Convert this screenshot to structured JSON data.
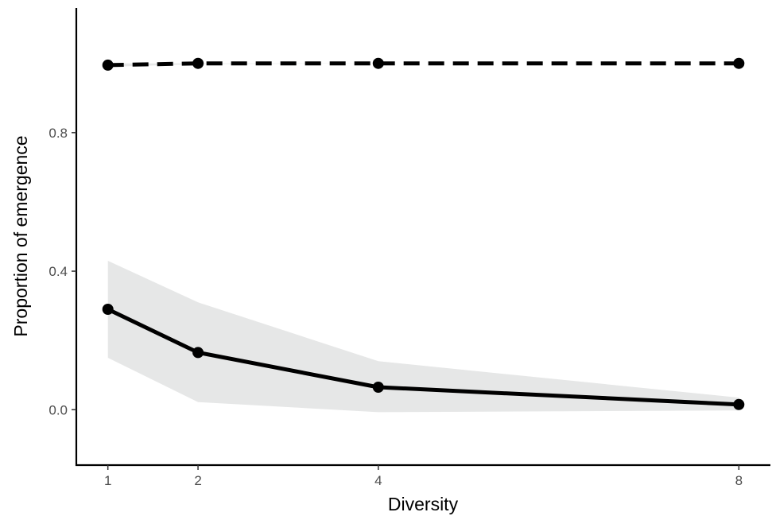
{
  "chart_data": {
    "type": "line",
    "title": "",
    "xlabel": "Diversity",
    "ylabel": "Proportion of emergence",
    "x": [
      1,
      2,
      4,
      8
    ],
    "x_ticks": [
      "1",
      "2",
      "4",
      "8"
    ],
    "y_ticks": [
      "0.0",
      "0.4",
      "0.8"
    ],
    "y_tick_values": [
      0.0,
      0.4,
      0.8
    ],
    "xlim": [
      0.65,
      8.35
    ],
    "ylim": [
      -0.16,
      1.16
    ],
    "grid": false,
    "legend": "none",
    "series": [
      {
        "line_style": "dashed",
        "color": "#000000",
        "values": [
          0.995,
          1.0,
          1.0,
          1.0
        ],
        "ci_lower": [
          0.99,
          0.998,
          1.0,
          1.0
        ],
        "ci_upper": [
          1.0,
          1.0,
          1.0,
          1.0
        ]
      },
      {
        "line_style": "solid",
        "color": "#000000",
        "values": [
          0.29,
          0.165,
          0.065,
          0.015
        ],
        "ci_lower": [
          0.15,
          0.022,
          -0.007,
          -0.002
        ],
        "ci_upper": [
          0.43,
          0.31,
          0.14,
          0.035
        ]
      }
    ],
    "ribbon_color": "#e6e7e7"
  }
}
